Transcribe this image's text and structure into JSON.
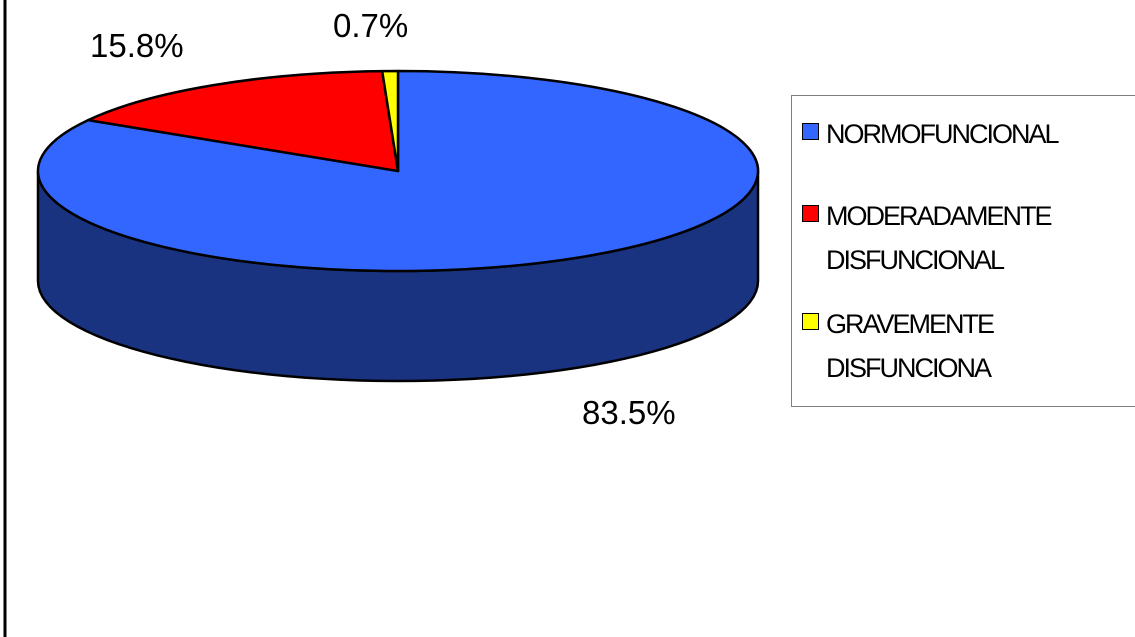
{
  "chart_data": {
    "type": "pie",
    "title": "",
    "style": "3d",
    "slices": [
      {
        "label": "NORMOFUNCIONAL",
        "value": 83.5,
        "display": "83.5%",
        "color": "#3366ff",
        "side_color": "#1a3380"
      },
      {
        "label": "MODERADAMENTE DISFUNCIONAL",
        "value": 15.8,
        "display": "15.8%",
        "color": "#ff0000",
        "side_color": "#800000"
      },
      {
        "label": "GRAVEMENTE DISFUNCIONA",
        "value": 0.7,
        "display": "0.7%",
        "color": "#ffff00",
        "side_color": "#808000"
      }
    ],
    "legend": {
      "placement": "right",
      "entries": [
        {
          "text": "NORMOFUNCIONAL",
          "color": "#3366ff"
        },
        {
          "text": "MODERADAMENTE\nDISFUNCIONAL",
          "color": "#ff0000"
        },
        {
          "text": "GRAVEMENTE\nDISFUNCIONA",
          "color": "#ffff00"
        }
      ]
    }
  }
}
